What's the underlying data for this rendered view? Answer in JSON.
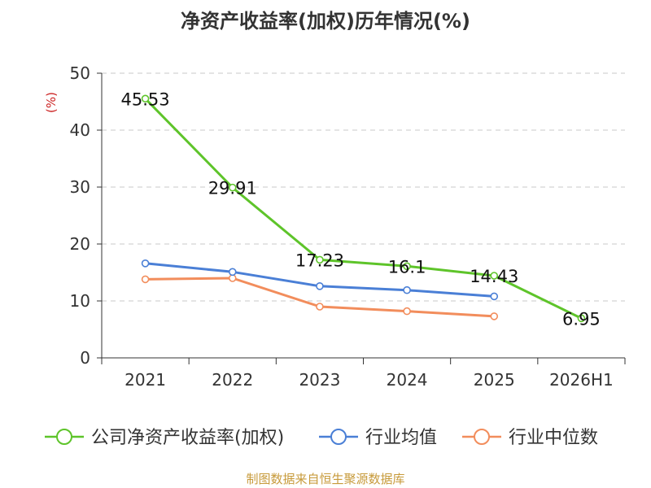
{
  "chart_data": {
    "type": "line",
    "title": "净资产收益率(加权)历年情况(%)",
    "ylabel": "(%)",
    "xlabel": "",
    "ylim": [
      0,
      50
    ],
    "yticks": [
      0,
      10,
      20,
      30,
      40,
      50
    ],
    "grid": true,
    "legend_position": "bottom",
    "categories": [
      "2021",
      "2022",
      "2023",
      "2024",
      "2025",
      "2026H1"
    ],
    "series": [
      {
        "name": "公司净资产收益率(加权)",
        "color": "#5ec42a",
        "values": [
          45.53,
          29.91,
          17.23,
          16.1,
          14.43,
          6.95
        ],
        "show_labels": true
      },
      {
        "name": "行业均值",
        "color": "#4a7fd6",
        "values": [
          16.6,
          15.1,
          12.6,
          11.9,
          10.8,
          null
        ],
        "show_labels": false
      },
      {
        "name": "行业中位数",
        "color": "#f28d5c",
        "values": [
          13.8,
          14.0,
          9.0,
          8.2,
          7.3,
          null
        ],
        "show_labels": false
      }
    ]
  },
  "source": "制图数据来自恒生聚源数据库"
}
